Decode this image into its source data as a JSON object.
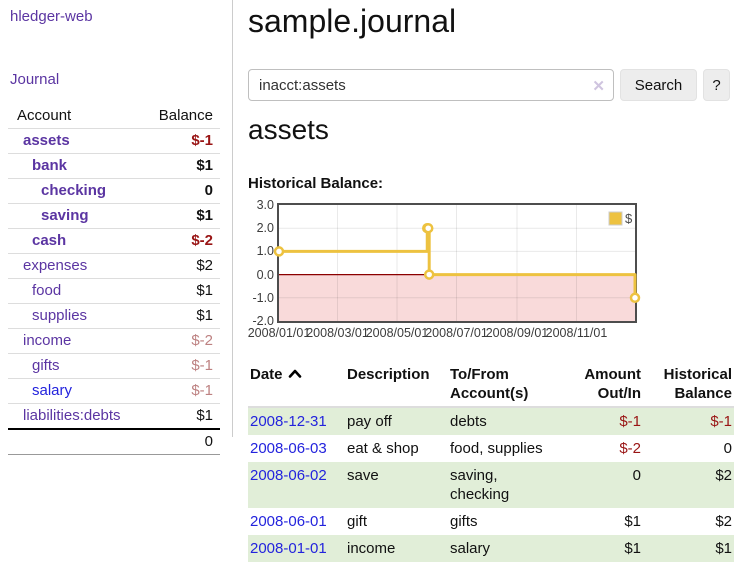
{
  "sidebar": {
    "brand": "hledger-web",
    "nav": {
      "journal": "Journal"
    },
    "accounts_table": {
      "headers": {
        "account": "Account",
        "balance": "Balance"
      },
      "accounts": [
        {
          "name": "assets",
          "balance": "$-1"
        },
        {
          "name": "bank",
          "balance": "$1"
        },
        {
          "name": "checking",
          "balance": "0"
        },
        {
          "name": "saving",
          "balance": "$1"
        },
        {
          "name": "cash",
          "balance": "$-2"
        },
        {
          "name": "expenses",
          "balance": "$2"
        },
        {
          "name": "food",
          "balance": "$1"
        },
        {
          "name": "supplies",
          "balance": "$1"
        },
        {
          "name": "income",
          "balance": "$-2"
        },
        {
          "name": "gifts",
          "balance": "$-1"
        },
        {
          "name": "salary",
          "balance": "$-1"
        },
        {
          "name": "liabilities:debts",
          "balance": "$1"
        }
      ],
      "total": "0"
    }
  },
  "header": {
    "title": "sample.journal"
  },
  "search": {
    "value": "inacct:assets",
    "clear_icon": "✕",
    "search_button": "Search",
    "help_button": "?"
  },
  "account_view": {
    "heading": "assets",
    "chart_title": "Historical Balance:"
  },
  "chart_data": {
    "type": "line",
    "style": "step",
    "title": "Historical Balance:",
    "series": [
      {
        "name": "$",
        "color": "#EDC240",
        "points": [
          [
            "2008-01-01",
            1
          ],
          [
            "2008-06-01",
            2
          ],
          [
            "2008-06-02",
            2
          ],
          [
            "2008-06-03",
            0
          ],
          [
            "2008-12-31",
            -1
          ]
        ]
      }
    ],
    "xlim": [
      "2008-01-01",
      "2008-12-31"
    ],
    "ylim": [
      -2,
      3
    ],
    "x_ticks": [
      "2008/01/01",
      "2008/03/01",
      "2008/05/01",
      "2008/07/01",
      "2008/09/01",
      "2008/11/01"
    ],
    "y_ticks": [
      3.0,
      2.0,
      1.0,
      0.0,
      -1.0,
      -2.0
    ],
    "legend_position": "top-right",
    "grid": true,
    "negative_region_color": "#f9dada",
    "zero_line_color": "#8b0000"
  },
  "register": {
    "columns": {
      "date": "Date",
      "description": "Description",
      "accounts": "To/From Account(s)",
      "amount": "Amount Out/In",
      "balance": "Historical Balance"
    },
    "rows": [
      {
        "date": "2008-12-31",
        "description": "pay off",
        "accounts": "debts",
        "amount": "$-1",
        "balance": "$-1"
      },
      {
        "date": "2008-06-03",
        "description": "eat & shop",
        "accounts": "food, supplies",
        "amount": "$-2",
        "balance": "0"
      },
      {
        "date": "2008-06-02",
        "description": "save",
        "accounts": "saving, checking",
        "amount": "0",
        "balance": "$2"
      },
      {
        "date": "2008-06-01",
        "description": "gift",
        "accounts": "gifts",
        "amount": "$1",
        "balance": "$2"
      },
      {
        "date": "2008-01-01",
        "description": "income",
        "accounts": "salary",
        "amount": "$1",
        "balance": "$1"
      }
    ]
  },
  "colors": {
    "link_purple": "#5b35a2",
    "link_blue": "#2323dd",
    "negative_red": "#991414",
    "negative_soft_red": "#bd8181",
    "row_stripe_green": "#e1eed8",
    "series_gold": "#EDC240"
  }
}
